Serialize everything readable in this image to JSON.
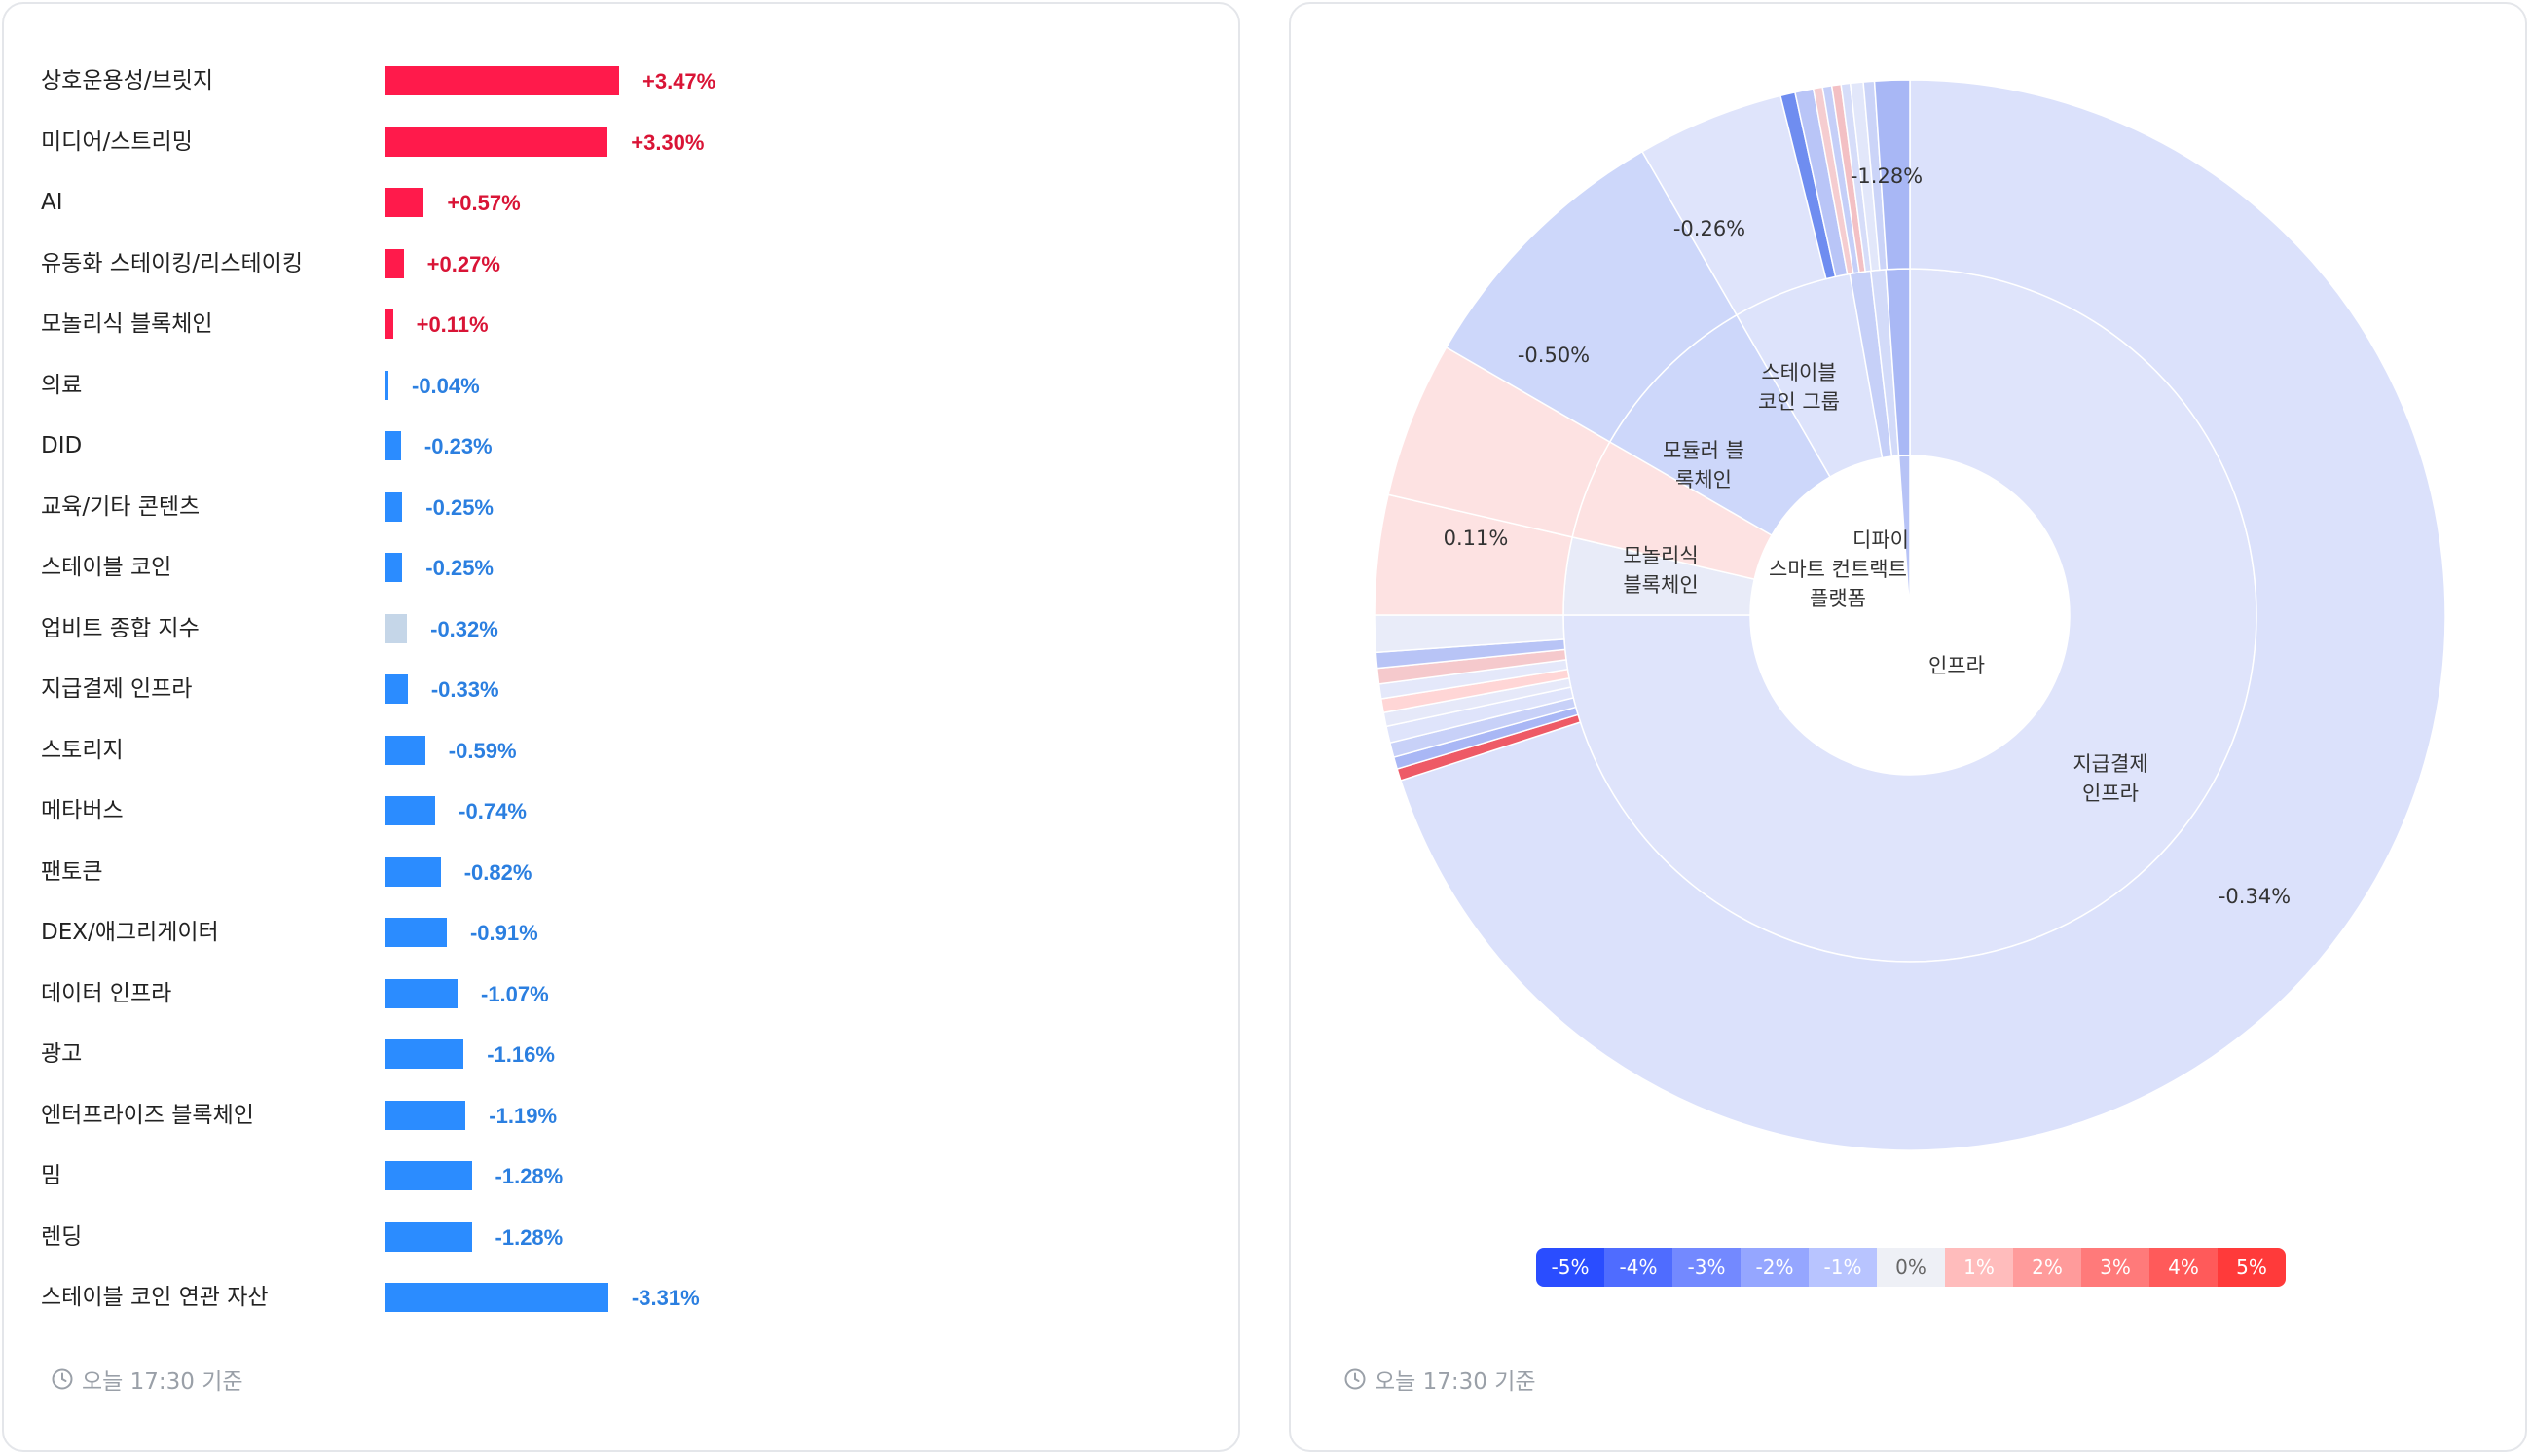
{
  "left_panel": {
    "footer": "오늘 17:30 기준",
    "positive_color": "#ff1a4b",
    "negative_color": "#2b8cff",
    "index_color": "#c5d6e8",
    "positive_text_color": "#d91436",
    "negative_text_color": "#2b7fe0"
  },
  "right_panel": {
    "footer": "오늘 17:30 기준",
    "legend": [
      "-5%",
      "-4%",
      "-3%",
      "-2%",
      "-1%",
      "0%",
      "1%",
      "2%",
      "3%",
      "4%",
      "5%"
    ],
    "legend_colors": [
      "#2a4dff",
      "#4f6cff",
      "#7389ff",
      "#95a6ff",
      "#b8c4ff",
      "#eef0f6",
      "#ffbcbc",
      "#ff9b9b",
      "#ff7a7a",
      "#ff5a5a",
      "#ff3a3a"
    ]
  },
  "chart_data": [
    {
      "type": "bar",
      "orientation": "horizontal",
      "categories": [
        "상호운용성/브릿지",
        "미디어/스트리밍",
        "AI",
        "유동화 스테이킹/리스테이킹",
        "모놀리식 블록체인",
        "의료",
        "DID",
        "교육/기타 콘텐츠",
        "스테이블 코인",
        "업비트 종합 지수",
        "지급결제 인프라",
        "스토리지",
        "메타버스",
        "팬토큰",
        "DEX/애그리게이터",
        "데이터 인프라",
        "광고",
        "엔터프라이즈 블록체인",
        "밈",
        "렌딩",
        "스테이블 코인 연관 자산"
      ],
      "values": [
        3.47,
        3.3,
        0.57,
        0.27,
        0.11,
        -0.04,
        -0.23,
        -0.25,
        -0.25,
        -0.32,
        -0.33,
        -0.59,
        -0.74,
        -0.82,
        -0.91,
        -1.07,
        -1.16,
        -1.19,
        -1.28,
        -1.28,
        -3.31
      ],
      "value_labels": [
        "+3.47%",
        "+3.30%",
        "+0.57%",
        "+0.27%",
        "+0.11%",
        "-0.04%",
        "-0.23%",
        "-0.25%",
        "-0.25%",
        "-0.32%",
        "-0.33%",
        "-0.59%",
        "-0.74%",
        "-0.82%",
        "-0.91%",
        "-1.07%",
        "-1.16%",
        "-1.19%",
        "-1.28%",
        "-1.28%",
        "-3.31%"
      ],
      "highlight": "업비트 종합 지수"
    },
    {
      "type": "pie",
      "subtype": "sunburst",
      "inner": [
        {
          "name": "인프라",
          "share": 0.75
        },
        {
          "name": "스마트 컨트랙트 플랫폼",
          "share": 0.22
        },
        {
          "name": "디파이",
          "share": 0.03
        }
      ],
      "middle": [
        {
          "name": "지급결제 인프라",
          "share": 0.75,
          "change": -0.34
        },
        {
          "name": "모놀리식 블록체인",
          "share": 0.08,
          "change": 0.11
        },
        {
          "name": "모듈러 블록체인",
          "share": 0.085,
          "change": -0.5
        },
        {
          "name": "스테이블 코인 그룹",
          "share": 0.07,
          "change": -0.26
        },
        {
          "name": "",
          "share": 0.015,
          "change": -1.28
        }
      ],
      "outer_labels": [
        "-0.34%",
        "0.11%",
        "-0.50%",
        "-0.26%",
        "-1.28%"
      ]
    }
  ]
}
